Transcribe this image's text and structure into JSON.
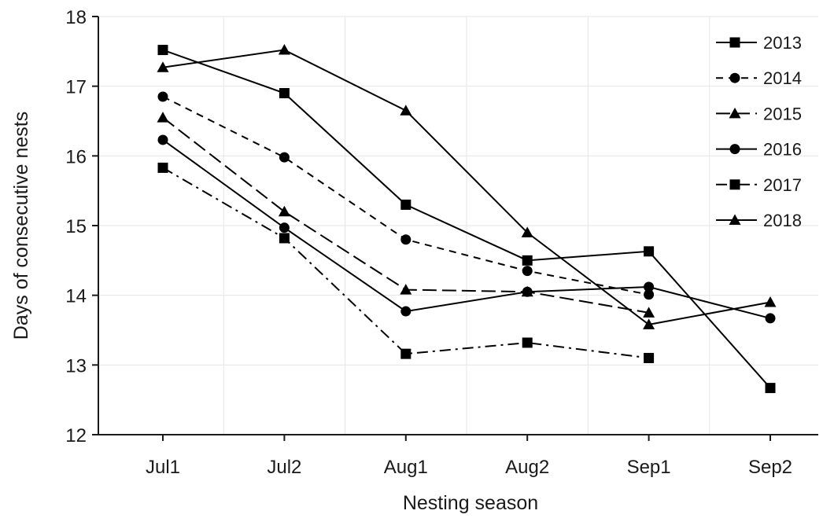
{
  "chart_data": {
    "type": "line",
    "title": "",
    "xlabel": "Nesting season",
    "ylabel": "Days of consecutive nests",
    "categories": [
      "Jul1",
      "Jul2",
      "Aug1",
      "Aug2",
      "Sep1",
      "Sep2"
    ],
    "ylim": [
      12,
      18
    ],
    "yticks": [
      "12",
      "13",
      "14",
      "15",
      "16",
      "17",
      "18"
    ],
    "grid": true,
    "legend_position": "top-right",
    "series": [
      {
        "name": "2013",
        "marker": "square",
        "line": "solid",
        "values": [
          17.52,
          16.9,
          15.3,
          14.5,
          14.63,
          12.67
        ]
      },
      {
        "name": "2014",
        "marker": "circle",
        "line": "dashed",
        "values": [
          16.85,
          15.98,
          14.8,
          14.35,
          14.01,
          null
        ]
      },
      {
        "name": "2015",
        "marker": "triangle",
        "line": "longdash",
        "values": [
          16.55,
          15.2,
          14.08,
          14.05,
          13.75,
          null
        ]
      },
      {
        "name": "2016",
        "marker": "circle",
        "line": "solid",
        "values": [
          16.23,
          14.97,
          13.77,
          14.05,
          14.12,
          13.67
        ]
      },
      {
        "name": "2017",
        "marker": "square",
        "line": "dashdot",
        "values": [
          15.83,
          14.82,
          13.16,
          13.32,
          13.1,
          null
        ]
      },
      {
        "name": "2018",
        "marker": "triangle",
        "line": "solid",
        "values": [
          17.27,
          17.52,
          16.65,
          14.9,
          13.58,
          13.9
        ]
      }
    ]
  }
}
